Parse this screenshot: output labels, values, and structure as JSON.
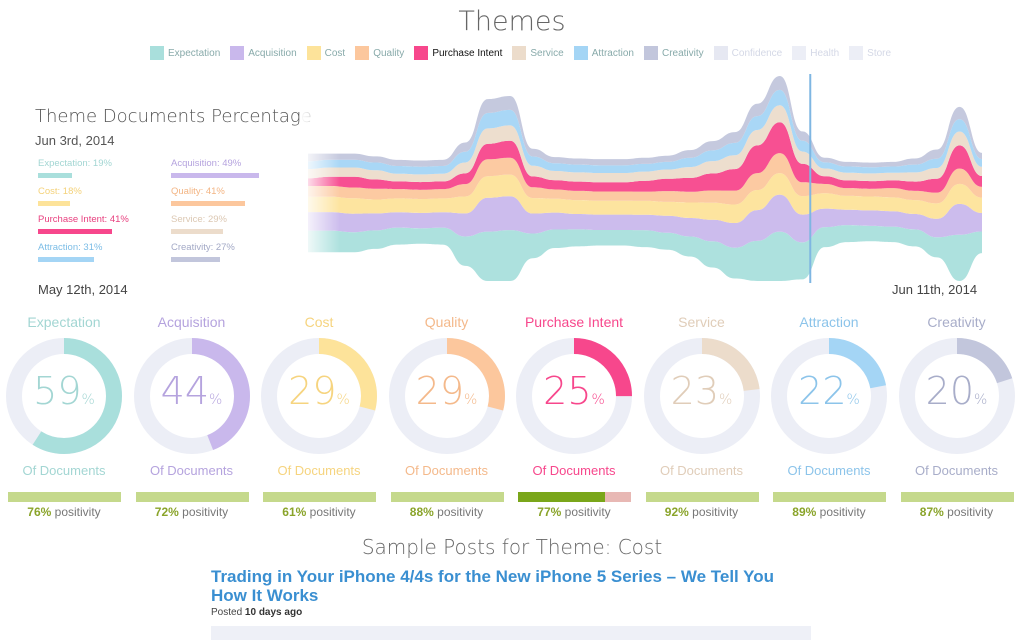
{
  "page": {
    "title": "Themes"
  },
  "legend": [
    {
      "label": "Expectation",
      "color": "#a9dfdc",
      "state": "normal"
    },
    {
      "label": "Acquisition",
      "color": "#c9b8ec",
      "state": "normal"
    },
    {
      "label": "Cost",
      "color": "#fde39a",
      "state": "normal"
    },
    {
      "label": "Quality",
      "color": "#fcc79d",
      "state": "normal"
    },
    {
      "label": "Purchase Intent",
      "color": "#f7478c",
      "state": "on"
    },
    {
      "label": "Service",
      "color": "#ecdccb",
      "state": "normal"
    },
    {
      "label": "Attraction",
      "color": "#a4d5f5",
      "state": "normal"
    },
    {
      "label": "Creativity",
      "color": "#c2c6dc",
      "state": "normal"
    },
    {
      "label": "Confidence",
      "color": "#e6e8f2",
      "state": "dim"
    },
    {
      "label": "Health",
      "color": "#eceef6",
      "state": "dim"
    },
    {
      "label": "Store",
      "color": "#eceef6",
      "state": "dim"
    }
  ],
  "panel": {
    "title": "Theme Documents Percentage",
    "date": "Jun 3rd, 2014",
    "items": [
      {
        "label": "Expectation: 19%",
        "value": 19,
        "color": "#a9dfdc",
        "text_color": "#a3d6d3"
      },
      {
        "label": "Acquisition: 49%",
        "value": 49,
        "color": "#c9b8ec",
        "text_color": "#b5a3de"
      },
      {
        "label": "Cost: 18%",
        "value": 18,
        "color": "#fde39a",
        "text_color": "#f4d27a"
      },
      {
        "label": "Quality: 41%",
        "value": 41,
        "color": "#fcc79d",
        "text_color": "#f3b584"
      },
      {
        "label": "Purchase Intent: 41%",
        "value": 41,
        "color": "#f7478c",
        "text_color": "#e8407f"
      },
      {
        "label": "Service: 29%",
        "value": 29,
        "color": "#ecdccb",
        "text_color": "#dcc8b3"
      },
      {
        "label": "Attraction: 31%",
        "value": 31,
        "color": "#a4d5f5",
        "text_color": "#7cbde6"
      },
      {
        "label": "Creativity: 27%",
        "value": 27,
        "color": "#c2c6dc",
        "text_color": "#a3a9c6"
      }
    ]
  },
  "range": {
    "start": "May 12th, 2014",
    "end": "Jun 11th, 2014"
  },
  "chart_data": {
    "type": "area",
    "subtype": "streamgraph",
    "title": "Themes",
    "x": [
      "May 12",
      "May 13",
      "May 14",
      "May 15",
      "May 16",
      "May 17",
      "May 18",
      "May 19",
      "May 20",
      "May 21",
      "May 22",
      "May 23",
      "May 24",
      "May 25",
      "May 26",
      "May 27",
      "May 28",
      "May 29",
      "May 30",
      "May 31",
      "Jun 1",
      "Jun 2",
      "Jun 3",
      "Jun 4",
      "Jun 5",
      "Jun 6",
      "Jun 7",
      "Jun 8",
      "Jun 9",
      "Jun 10",
      "Jun 11"
    ],
    "highlight_x": "Jun 3",
    "series": [
      {
        "name": "Expectation",
        "color": "#a9dfdc",
        "values": [
          14,
          14,
          13,
          12,
          11,
          10,
          11,
          19,
          32,
          33,
          16,
          12,
          11,
          10,
          10,
          11,
          11,
          13,
          17,
          20,
          26,
          32,
          24,
          13,
          11,
          10,
          10,
          11,
          13,
          30,
          14
        ]
      },
      {
        "name": "Acquisition",
        "color": "#c9b8ec",
        "values": [
          12,
          12,
          12,
          11,
          10,
          10,
          10,
          15,
          22,
          22,
          13,
          11,
          10,
          10,
          10,
          10,
          11,
          12,
          14,
          16,
          20,
          24,
          18,
          12,
          10,
          10,
          10,
          10,
          12,
          20,
          12
        ]
      },
      {
        "name": "Cost",
        "color": "#fde39a",
        "values": [
          10,
          10,
          10,
          9,
          9,
          9,
          9,
          11,
          14,
          14,
          10,
          9,
          9,
          9,
          9,
          9,
          9,
          10,
          11,
          12,
          13,
          14,
          12,
          10,
          9,
          9,
          9,
          9,
          10,
          13,
          10
        ]
      },
      {
        "name": "Quality",
        "color": "#fcc79d",
        "values": [
          7,
          7,
          7,
          7,
          6,
          6,
          6,
          8,
          11,
          11,
          7,
          6,
          6,
          6,
          6,
          6,
          7,
          7,
          8,
          9,
          11,
          13,
          9,
          6,
          5,
          5,
          6,
          6,
          7,
          10,
          7
        ]
      },
      {
        "name": "Purchase Intent",
        "color": "#f7478c",
        "values": [
          5,
          6,
          7,
          6,
          5,
          5,
          5,
          7,
          10,
          11,
          7,
          6,
          6,
          6,
          6,
          7,
          8,
          9,
          11,
          14,
          18,
          20,
          12,
          5,
          5,
          5,
          5,
          6,
          9,
          15,
          7
        ]
      },
      {
        "name": "Service",
        "color": "#ecdccb",
        "values": [
          6,
          6,
          6,
          6,
          5,
          5,
          5,
          7,
          10,
          10,
          7,
          6,
          6,
          6,
          6,
          6,
          6,
          7,
          8,
          9,
          10,
          11,
          8,
          5,
          5,
          5,
          5,
          6,
          7,
          9,
          6
        ]
      },
      {
        "name": "Attraction",
        "color": "#a4d5f5",
        "values": [
          5,
          5,
          5,
          5,
          5,
          5,
          5,
          7,
          10,
          10,
          6,
          5,
          5,
          5,
          5,
          5,
          5,
          6,
          7,
          8,
          9,
          10,
          7,
          4,
          4,
          4,
          4,
          5,
          6,
          8,
          5
        ]
      },
      {
        "name": "Creativity",
        "color": "#c2c6dc",
        "values": [
          5,
          4,
          4,
          4,
          4,
          4,
          4,
          6,
          9,
          9,
          5,
          4,
          4,
          4,
          4,
          4,
          4,
          5,
          6,
          7,
          8,
          9,
          6,
          3,
          3,
          3,
          3,
          4,
          6,
          8,
          4
        ]
      }
    ]
  },
  "themes": [
    {
      "name": "Expectation",
      "percent": "59",
      "value": 59,
      "of_docs": "Of Documents",
      "positivity": 76,
      "positivity_pct": "76%",
      "positivity_label": " positivity",
      "color": "#a9dfdc",
      "text_color": "#a3d6d3"
    },
    {
      "name": "Acquisition",
      "percent": "44",
      "value": 44,
      "of_docs": "Of Documents",
      "positivity": 72,
      "positivity_pct": "72%",
      "positivity_label": " positivity",
      "color": "#c9b8ec",
      "text_color": "#b5a3de"
    },
    {
      "name": "Cost",
      "percent": "29",
      "value": 29,
      "of_docs": "Of Documents",
      "positivity": 61,
      "positivity_pct": "61%",
      "positivity_label": " positivity",
      "color": "#fde39a",
      "text_color": "#f6d47f"
    },
    {
      "name": "Quality",
      "percent": "29",
      "value": 29,
      "of_docs": "Of Documents",
      "positivity": 88,
      "positivity_pct": "88%",
      "positivity_label": " positivity",
      "color": "#fcc79d",
      "text_color": "#f4b98b"
    },
    {
      "name": "Purchase Intent",
      "percent": "25",
      "value": 25,
      "of_docs": "Of Documents",
      "positivity": 77,
      "positivity_pct": "77%",
      "positivity_label": " positivity",
      "color": "#f7478c",
      "text_color": "#e8407f",
      "selected": true
    },
    {
      "name": "Service",
      "percent": "23",
      "value": 23,
      "of_docs": "Of Documents",
      "positivity": 92,
      "positivity_pct": "92%",
      "positivity_label": " positivity",
      "color": "#ecdccb",
      "text_color": "#e0cdb9"
    },
    {
      "name": "Attraction",
      "percent": "22",
      "value": 22,
      "of_docs": "Of Documents",
      "positivity": 89,
      "positivity_pct": "89%",
      "positivity_label": " positivity",
      "color": "#a4d5f5",
      "text_color": "#8cc4ea"
    },
    {
      "name": "Creativity",
      "percent": "20",
      "value": 20,
      "of_docs": "Of Documents",
      "positivity": 87,
      "positivity_pct": "87%",
      "positivity_label": " positivity",
      "color": "#c2c6dc",
      "text_color": "#a8adc9"
    }
  ],
  "percent_sign": "%",
  "sample": {
    "heading": "Sample Posts for Theme: Cost",
    "post_title": "Trading in Your iPhone 4/4s for the New iPhone 5 Series – We Tell You How It Works",
    "posted_label": "Posted",
    "posted_age": "10 days ago"
  }
}
